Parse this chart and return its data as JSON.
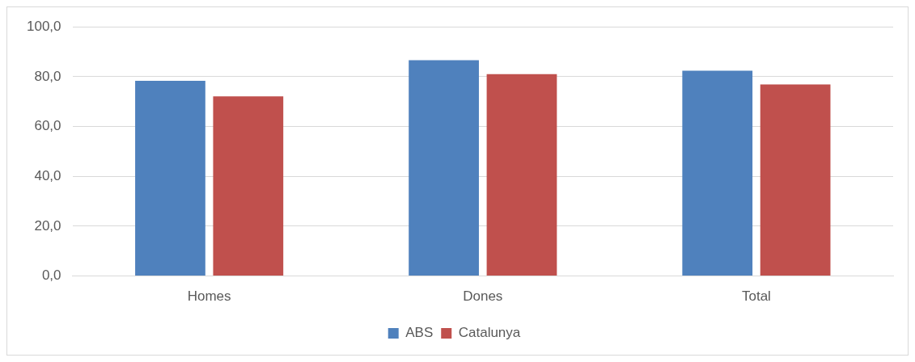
{
  "chart_data": {
    "type": "bar",
    "categories": [
      "Homes",
      "Dones",
      "Total"
    ],
    "series": [
      {
        "name": "ABS",
        "color": "#4f81bd",
        "values": [
          78.3,
          86.6,
          82.4
        ]
      },
      {
        "name": "Catalunya",
        "color": "#c0504d",
        "values": [
          72.1,
          81.0,
          76.9
        ]
      }
    ],
    "ylim": [
      0,
      100
    ],
    "yticks": [
      {
        "value": 0,
        "label": "0,0"
      },
      {
        "value": 20,
        "label": "20,0"
      },
      {
        "value": 40,
        "label": "40,0"
      },
      {
        "value": 60,
        "label": "60,0"
      },
      {
        "value": 80,
        "label": "80,0"
      },
      {
        "value": 100,
        "label": "100,0"
      }
    ],
    "grid": "y",
    "legend": "bottom"
  }
}
